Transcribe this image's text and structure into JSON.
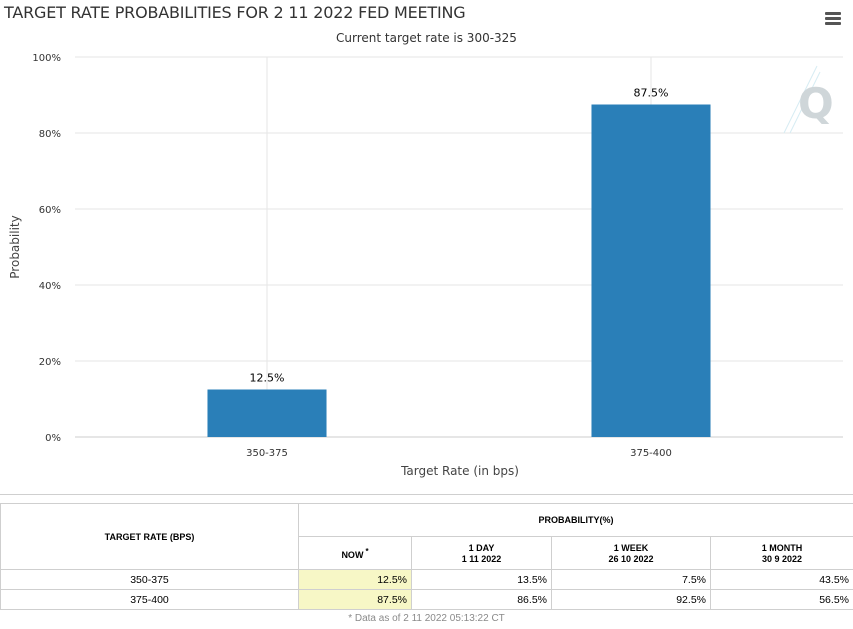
{
  "header": {
    "title": "TARGET RATE PROBABILITIES FOR 2 11 2022 FED MEETING",
    "subtitle": "Current target rate is 300-325"
  },
  "chart_data": {
    "type": "bar",
    "title": "TARGET RATE PROBABILITIES FOR 2 11 2022 FED MEETING",
    "subtitle": "Current target rate is 300-325",
    "categories": [
      "350-375",
      "375-400"
    ],
    "values": [
      12.5,
      87.5
    ],
    "value_labels": [
      "12.5%",
      "87.5%"
    ],
    "xlabel": "Target Rate (in bps)",
    "ylabel": "Probability",
    "ylim": [
      0,
      100
    ],
    "yticks": [
      0,
      20,
      40,
      60,
      80,
      100
    ],
    "ytick_labels": [
      "0%",
      "20%",
      "40%",
      "60%",
      "80%",
      "100%"
    ],
    "grid": true,
    "bar_color": "#2a7fb8"
  },
  "table": {
    "target_rate_header": "TARGET RATE (BPS)",
    "probability_header": "PROBABILITY(%)",
    "columns": [
      {
        "label": "NOW",
        "marker": "*",
        "date": ""
      },
      {
        "label": "1 DAY",
        "date": "1 11 2022"
      },
      {
        "label": "1 WEEK",
        "date": "26 10 2022"
      },
      {
        "label": "1 MONTH",
        "date": "30 9 2022"
      }
    ],
    "rows": [
      {
        "rate": "350-375",
        "values": [
          "12.5%",
          "13.5%",
          "7.5%",
          "43.5%"
        ]
      },
      {
        "rate": "375-400",
        "values": [
          "87.5%",
          "86.5%",
          "92.5%",
          "56.5%"
        ]
      }
    ],
    "footnote": "* Data as of 2 11 2022 05:13:22 CT"
  },
  "colors": {
    "bar": "#2a7fb8",
    "now_highlight": "#f7f7c6",
    "grid": "#e6e6e6"
  },
  "icons": {
    "menu": "hamburger-menu-icon",
    "watermark": "quikstrike-q-logo"
  }
}
